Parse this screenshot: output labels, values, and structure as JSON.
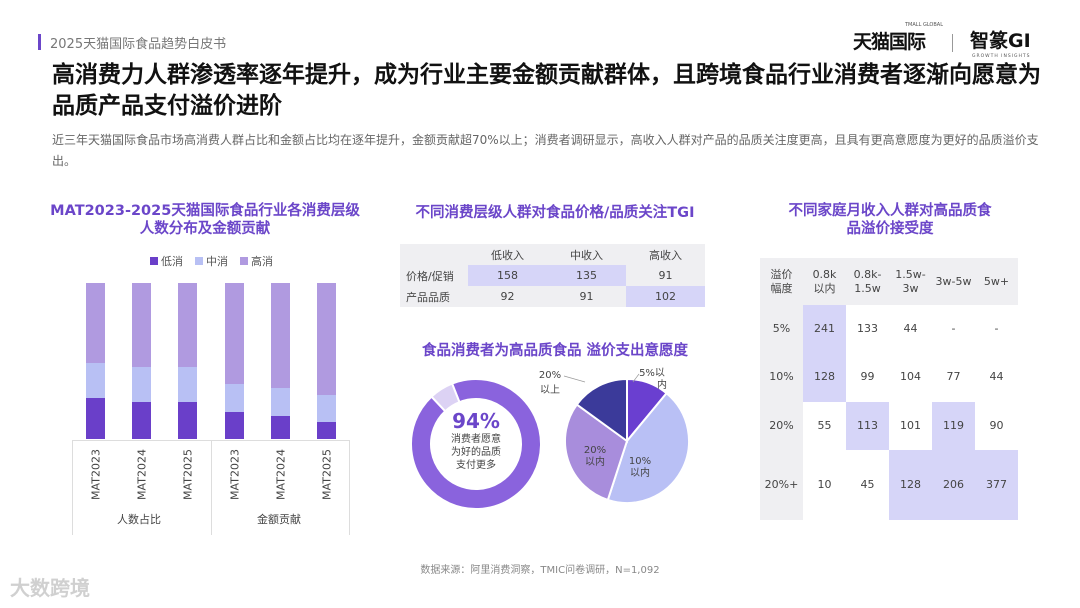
{
  "header": {
    "report_name": "2025天猫国际食品趋势白皮书",
    "logo_tmall": "天猫国际",
    "logo_tmall_sub": "TMALL GLOBAL",
    "logo_gi": "智篆GI",
    "logo_gi_sub": "GROWTH INSIGHTS"
  },
  "title": "高消费力人群渗透率逐年提升，成为行业主要金额贡献群体，且跨境食品行业消费者逐渐向愿意为品质产品支付溢价进阶",
  "description": "近三年天猫国际食品市场高消费人群占比和金额占比均在逐年提升，金额贡献超70%以上；消费者调研显示，高收入人群对产品的品质关注度更高，且具有更高意愿度为更好的品质溢价支出。",
  "chart_data": [
    {
      "type": "bar",
      "stacked": true,
      "title": "MAT2023-2025天猫国际食品行业各消费层级人数分布及金额贡献",
      "categories": [
        "MAT2023",
        "MAT2024",
        "MAT2025",
        "MAT2023",
        "MAT2024",
        "MAT2025"
      ],
      "groups": [
        "人数占比",
        "金额贡献"
      ],
      "legend": "top",
      "ylim": [
        0,
        100
      ],
      "series": [
        {
          "name": "低消",
          "color": "#6a3fc9",
          "values": [
            26,
            24,
            24,
            17,
            15,
            11
          ]
        },
        {
          "name": "中消",
          "color": "#b8c0f4",
          "values": [
            23,
            22,
            22,
            18,
            18,
            17
          ]
        },
        {
          "name": "高消",
          "color": "#b09ae0",
          "values": [
            51,
            54,
            54,
            65,
            67,
            72
          ]
        }
      ]
    },
    {
      "type": "table",
      "title": "不同消费层级人群对食品价格/品质关注TGI",
      "columns": [
        "",
        "低收入",
        "中收入",
        "高收入"
      ],
      "rows": [
        [
          "价格/促销",
          "158",
          "135",
          "91"
        ],
        [
          "产品品质",
          "92",
          "91",
          "102"
        ]
      ]
    },
    {
      "type": "pie",
      "variant": "donut",
      "title": "食品消费者为高品质食品 溢价支出意愿度",
      "center_value": "94%",
      "center_label": [
        "消费者愿意",
        "为好的品质",
        "支付更多"
      ],
      "values": [
        94,
        6
      ],
      "colors": [
        "#8a63dd",
        "#dcd2f4"
      ]
    },
    {
      "type": "pie",
      "labels": [
        "5%以内",
        "10%以内",
        "20%以内",
        "20%以上"
      ],
      "label_lines": [
        [
          "5%以",
          "内"
        ],
        [
          "10%",
          "以内"
        ],
        [
          "20%",
          "以内"
        ],
        [
          "20%",
          "以上"
        ]
      ],
      "values": [
        11,
        44,
        30,
        15
      ],
      "colors": [
        "#6a3fd0",
        "#b9c0f5",
        "#a88ddc",
        "#3b3a9a"
      ]
    },
    {
      "type": "table",
      "title": "不同家庭月收入人群对高品质食品溢价接受度",
      "columns": [
        [
          "溢价",
          "幅度"
        ],
        [
          "0.8k",
          "以内"
        ],
        [
          "0.8k-",
          "1.5w"
        ],
        [
          "1.5w-",
          "3w"
        ],
        [
          "3w-5w"
        ],
        [
          "5w+"
        ]
      ],
      "rows": [
        [
          "5%",
          "241",
          "133",
          "44",
          "-",
          "-"
        ],
        [
          "10%",
          "128",
          "99",
          "104",
          "77",
          "44"
        ],
        [
          "20%",
          "55",
          "113",
          "101",
          "119",
          "90"
        ],
        [
          "20%+",
          "10",
          "45",
          "128",
          "206",
          "377"
        ]
      ],
      "highlighted": [
        [
          0,
          1
        ],
        [
          1,
          1
        ],
        [
          2,
          2
        ],
        [
          2,
          4
        ],
        [
          3,
          3
        ],
        [
          3,
          4
        ],
        [
          3,
          5
        ]
      ]
    }
  ],
  "footer": {
    "source": "数据来源：阿里消费洞察，TMIC问卷调研，N=1,092",
    "brand": "大数跨境"
  }
}
